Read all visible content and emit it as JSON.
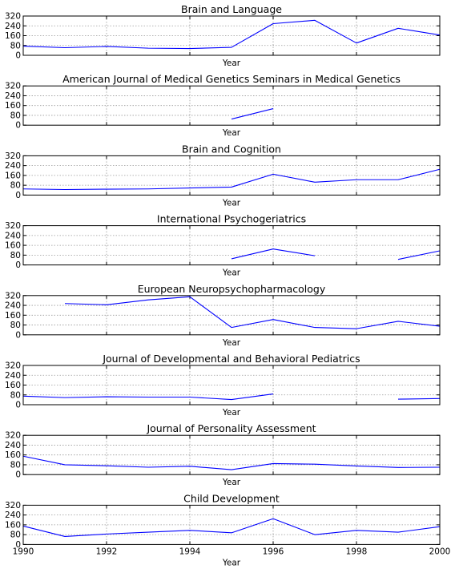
{
  "chart_data": [
    {
      "type": "line",
      "title": "Brain and Language",
      "xlabel": "Year",
      "ylabel": "",
      "x": [
        1990,
        1991,
        1992,
        1993,
        1994,
        1995,
        1996,
        1997,
        1998,
        1999,
        2000
      ],
      "values": [
        75,
        62,
        72,
        58,
        55,
        65,
        258,
        285,
        100,
        220,
        165
      ],
      "xlim": [
        1990,
        2000
      ],
      "ylim": [
        0,
        320
      ],
      "yticks": [
        0,
        80,
        160,
        240,
        320
      ],
      "grid": true
    },
    {
      "type": "line",
      "title": "American Journal of Medical Genetics Seminars in Medical Genetics",
      "xlabel": "Year",
      "ylabel": "",
      "x": [
        1990,
        1991,
        1992,
        1993,
        1994,
        1995,
        1996,
        1997,
        1998,
        1999,
        2000
      ],
      "values": [
        null,
        null,
        null,
        null,
        null,
        50,
        135,
        null,
        null,
        null,
        null
      ],
      "xlim": [
        1990,
        2000
      ],
      "ylim": [
        0,
        320
      ],
      "yticks": [
        0,
        80,
        160,
        240,
        320
      ],
      "grid": true
    },
    {
      "type": "line",
      "title": "Brain and Cognition",
      "xlabel": "Year",
      "ylabel": "",
      "x": [
        1990,
        1991,
        1992,
        1993,
        1994,
        1995,
        1996,
        1997,
        1998,
        1999,
        2000
      ],
      "values": [
        50,
        45,
        48,
        50,
        58,
        65,
        170,
        105,
        125,
        125,
        210
      ],
      "xlim": [
        1990,
        2000
      ],
      "ylim": [
        0,
        320
      ],
      "yticks": [
        0,
        80,
        160,
        240,
        320
      ],
      "grid": true
    },
    {
      "type": "line",
      "title": "International Psychogeriatrics",
      "xlabel": "Year",
      "ylabel": "",
      "x": [
        1990,
        1991,
        1992,
        1993,
        1994,
        1995,
        1996,
        1997,
        1998,
        1999,
        2000
      ],
      "values": [
        null,
        null,
        null,
        null,
        null,
        50,
        130,
        75,
        null,
        45,
        115
      ],
      "xlim": [
        1990,
        2000
      ],
      "ylim": [
        0,
        320
      ],
      "yticks": [
        0,
        80,
        160,
        240,
        320
      ],
      "grid": true
    },
    {
      "type": "line",
      "title": "European Neuropsychopharmacology",
      "xlabel": "Year",
      "ylabel": "",
      "x": [
        1990,
        1991,
        1992,
        1993,
        1994,
        1995,
        1996,
        1997,
        1998,
        1999,
        2000
      ],
      "values": [
        null,
        255,
        245,
        285,
        310,
        60,
        125,
        60,
        50,
        110,
        70
      ],
      "xlim": [
        1990,
        2000
      ],
      "ylim": [
        0,
        320
      ],
      "yticks": [
        0,
        80,
        160,
        240,
        320
      ],
      "grid": true
    },
    {
      "type": "line",
      "title": "Journal of Developmental and Behavioral Pediatrics",
      "xlabel": "Year",
      "ylabel": "",
      "x": [
        1990,
        1991,
        1992,
        1993,
        1994,
        1995,
        1996,
        1997,
        1998,
        1999,
        2000
      ],
      "values": [
        70,
        58,
        65,
        62,
        62,
        42,
        88,
        null,
        null,
        45,
        50
      ],
      "xlim": [
        1990,
        2000
      ],
      "ylim": [
        0,
        320
      ],
      "yticks": [
        0,
        80,
        160,
        240,
        320
      ],
      "grid": true
    },
    {
      "type": "line",
      "title": "Journal of Personality Assessment",
      "xlabel": "Year",
      "ylabel": "",
      "x": [
        1990,
        1991,
        1992,
        1993,
        1994,
        1995,
        1996,
        1997,
        1998,
        1999,
        2000
      ],
      "values": [
        150,
        80,
        72,
        60,
        68,
        40,
        90,
        85,
        70,
        58,
        60
      ],
      "xlim": [
        1990,
        2000
      ],
      "ylim": [
        0,
        320
      ],
      "yticks": [
        0,
        80,
        160,
        240,
        320
      ],
      "grid": true
    },
    {
      "type": "line",
      "title": "Child Development",
      "xlabel": "Year",
      "ylabel": "",
      "x": [
        1990,
        1991,
        1992,
        1993,
        1994,
        1995,
        1996,
        1997,
        1998,
        1999,
        2000
      ],
      "values": [
        150,
        65,
        85,
        100,
        115,
        95,
        210,
        80,
        115,
        100,
        145
      ],
      "xlim": [
        1990,
        2000
      ],
      "ylim": [
        0,
        320
      ],
      "yticks": [
        0,
        80,
        160,
        240,
        320
      ],
      "xticks": [
        1990,
        1992,
        1994,
        1996,
        1998,
        2000
      ],
      "grid": true
    }
  ],
  "colors": {
    "line": "#0000ff",
    "grid": "#9a9a9a",
    "frame": "#000000"
  }
}
